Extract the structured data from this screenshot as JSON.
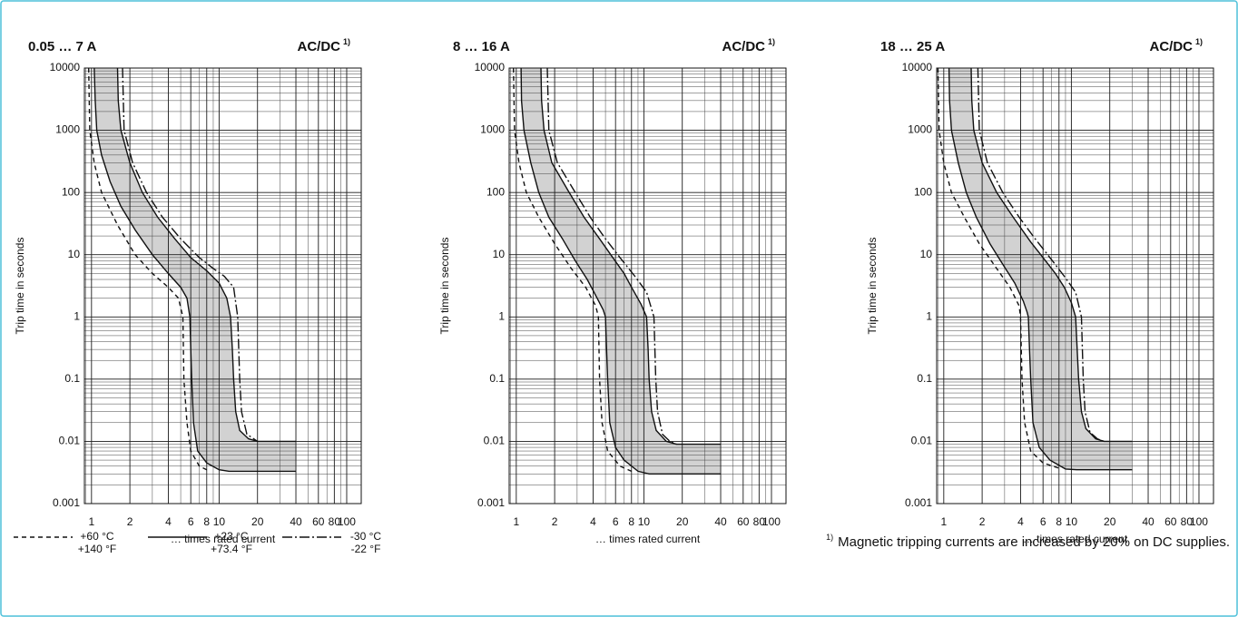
{
  "chart_data": [
    {
      "type": "line",
      "title": "0.05 … 7 A",
      "title_right": "AC/DC",
      "title_right_note": "1)",
      "ylabel": "Trip time in seconds",
      "xlabel": "… times rated current",
      "log_x": true,
      "log_y": true,
      "grid": true,
      "fill_between_solid": "#d2d2d2",
      "xlim": [
        0.88,
        130
      ],
      "ylim": [
        0.001,
        10000
      ],
      "xticks": [
        1,
        2,
        4,
        6,
        8,
        10,
        20,
        40,
        60,
        80,
        100
      ],
      "yticks": [
        10000,
        1000,
        100,
        10,
        1,
        0.1,
        0.01,
        0.001
      ],
      "series": [
        {
          "style": "solid",
          "color": "#111111",
          "x": [
            1.05,
            1.07,
            1.1,
            1.2,
            1.4,
            1.7,
            2.2,
            3,
            4,
            5,
            5.6,
            5.9,
            6.0,
            6.1,
            6.3,
            6.8,
            8,
            10,
            12,
            40
          ],
          "values": [
            10000,
            3000,
            1000,
            400,
            150,
            60,
            25,
            10,
            5,
            3,
            2,
            1,
            0.3,
            0.1,
            0.02,
            0.007,
            0.0045,
            0.0035,
            0.0033,
            0.0033
          ]
        },
        {
          "style": "solid",
          "color": "#111111",
          "x": [
            1.6,
            1.62,
            1.7,
            2,
            2.5,
            3.3,
            4.5,
            6,
            8,
            10,
            11.5,
            12.3,
            12.7,
            13,
            13.5,
            14.5,
            17,
            20,
            40
          ],
          "values": [
            10000,
            3000,
            1000,
            300,
            100,
            40,
            18,
            9,
            5.5,
            3.5,
            2,
            1,
            0.3,
            0.1,
            0.03,
            0.015,
            0.011,
            0.01,
            0.01
          ]
        },
        {
          "style": "dashed",
          "color": "#111111",
          "x": [
            0.95,
            0.97,
            1.05,
            1.2,
            1.6,
            2.2,
            3,
            4,
            4.8,
            5.2,
            5.3,
            5.6,
            6,
            7,
            8
          ],
          "values": [
            10000,
            1000,
            300,
            100,
            30,
            10,
            5,
            3,
            2,
            1,
            0.1,
            0.02,
            0.007,
            0.004,
            0.0035
          ]
        },
        {
          "style": "dashdot",
          "color": "#111111",
          "x": [
            1.75,
            1.8,
            2.1,
            2.7,
            3.6,
            5,
            7,
            9,
            11,
            13,
            14,
            14.5,
            15,
            16.5,
            20
          ],
          "values": [
            10000,
            1000,
            300,
            100,
            40,
            18,
            9,
            6,
            4.5,
            3,
            1,
            0.1,
            0.03,
            0.013,
            0.01
          ]
        }
      ]
    },
    {
      "type": "line",
      "title": "8 … 16 A",
      "title_right": "AC/DC",
      "title_right_note": "1)",
      "ylabel": "Trip time in seconds",
      "xlabel": "… times rated current",
      "log_x": true,
      "log_y": true,
      "grid": true,
      "fill_between_solid": "#d2d2d2",
      "xlim": [
        0.88,
        130
      ],
      "ylim": [
        0.001,
        10000
      ],
      "xticks": [
        1,
        2,
        4,
        6,
        8,
        10,
        20,
        40,
        60,
        80,
        100
      ],
      "yticks": [
        10000,
        1000,
        100,
        10,
        1,
        0.1,
        0.01,
        0.001
      ],
      "series": [
        {
          "style": "solid",
          "color": "#111111",
          "x": [
            1.09,
            1.1,
            1.15,
            1.3,
            1.5,
            1.8,
            2.3,
            2.9,
            3.6,
            4.3,
            4.8,
            5.0,
            5.1,
            5.2,
            5.4,
            6,
            7,
            9,
            11,
            40
          ],
          "values": [
            10000,
            3000,
            1000,
            300,
            100,
            40,
            18,
            8,
            4,
            2,
            1.3,
            1,
            0.3,
            0.1,
            0.02,
            0.008,
            0.005,
            0.0033,
            0.003,
            0.003
          ]
        },
        {
          "style": "solid",
          "color": "#111111",
          "x": [
            1.56,
            1.58,
            1.65,
            1.9,
            2.6,
            3.4,
            4.5,
            5.5,
            7,
            8,
            9.5,
            10.5,
            10.8,
            11,
            11.5,
            12.5,
            15,
            18,
            40
          ],
          "values": [
            10000,
            3000,
            1000,
            300,
            100,
            40,
            18,
            10,
            5,
            3,
            1.6,
            1,
            0.3,
            0.1,
            0.03,
            0.015,
            0.01,
            0.009,
            0.009
          ]
        },
        {
          "style": "dashed",
          "color": "#111111",
          "x": [
            0.95,
            0.97,
            1.05,
            1.2,
            1.5,
            2,
            2.7,
            3.5,
            4.2,
            4.4,
            4.5,
            4.7,
            5.2,
            6.5,
            8
          ],
          "values": [
            10000,
            1000,
            300,
            100,
            40,
            15,
            6,
            3,
            1.5,
            1,
            0.1,
            0.02,
            0.007,
            0.004,
            0.0033
          ]
        },
        {
          "style": "dashdot",
          "color": "#111111",
          "x": [
            1.75,
            1.8,
            2.1,
            2.9,
            3.8,
            5,
            6.5,
            8.5,
            10.5,
            12,
            12.4,
            12.8,
            14,
            16,
            18
          ],
          "values": [
            10000,
            1000,
            300,
            100,
            40,
            18,
            9,
            4.5,
            2.5,
            1,
            0.1,
            0.03,
            0.013,
            0.01,
            0.009
          ]
        }
      ]
    },
    {
      "type": "line",
      "title": "18 … 25 A",
      "title_right": "AC/DC",
      "title_right_note": "1)",
      "ylabel": "Trip time in seconds",
      "xlabel": "… times rated current",
      "log_x": true,
      "log_y": true,
      "grid": true,
      "fill_between_solid": "#d2d2d2",
      "xlim": [
        0.88,
        130
      ],
      "ylim": [
        0.001,
        10000
      ],
      "xticks": [
        1,
        2,
        4,
        6,
        8,
        10,
        20,
        40,
        60,
        80,
        100
      ],
      "yticks": [
        10000,
        1000,
        100,
        10,
        1,
        0.1,
        0.01,
        0.001
      ],
      "series": [
        {
          "style": "solid",
          "color": "#111111",
          "x": [
            1.1,
            1.11,
            1.15,
            1.3,
            1.5,
            1.8,
            2.3,
            2.9,
            3.6,
            4.2,
            4.5,
            4.6,
            4.7,
            4.8,
            5.0,
            5.6,
            6.8,
            9,
            11,
            30
          ],
          "values": [
            10000,
            3000,
            1000,
            300,
            100,
            40,
            15,
            7,
            3.5,
            1.8,
            1.2,
            1,
            0.3,
            0.1,
            0.02,
            0.008,
            0.005,
            0.0036,
            0.0035,
            0.0035
          ]
        },
        {
          "style": "solid",
          "color": "#111111",
          "x": [
            1.64,
            1.66,
            1.72,
            2,
            2.6,
            3.5,
            4.8,
            6,
            7.5,
            8.8,
            10,
            10.8,
            11.1,
            11.4,
            12,
            13,
            15.5,
            18,
            30
          ],
          "values": [
            10000,
            3000,
            1000,
            300,
            100,
            40,
            16,
            9,
            5,
            3,
            1.7,
            1,
            0.3,
            0.1,
            0.03,
            0.016,
            0.011,
            0.01,
            0.01
          ]
        },
        {
          "style": "dashed",
          "color": "#111111",
          "x": [
            0.9,
            0.92,
            1.0,
            1.15,
            1.45,
            1.9,
            2.6,
            3.3,
            3.9,
            4.0,
            4.1,
            4.3,
            4.8,
            6,
            8
          ],
          "values": [
            10000,
            1000,
            300,
            100,
            40,
            15,
            6,
            3,
            1.5,
            1,
            0.1,
            0.02,
            0.007,
            0.0045,
            0.0037
          ]
        },
        {
          "style": "dashdot",
          "color": "#111111",
          "x": [
            1.85,
            1.9,
            2.2,
            2.9,
            3.9,
            5.2,
            6.8,
            8.8,
            10.8,
            12,
            12.4,
            12.8,
            14,
            16,
            18
          ],
          "values": [
            10000,
            1000,
            300,
            100,
            40,
            18,
            9,
            4.5,
            2.5,
            1,
            0.1,
            0.03,
            0.014,
            0.011,
            0.01
          ]
        }
      ]
    }
  ],
  "legend": [
    {
      "style": "dashed",
      "lines": [
        "+60 °C",
        "+140 °F"
      ]
    },
    {
      "style": "solid",
      "lines": [
        "+23 °C",
        "+73.4 °F"
      ]
    },
    {
      "style": "dashdot",
      "lines": [
        "-30 °C",
        "-22 °F"
      ]
    }
  ],
  "footnote": {
    "mark": "1)",
    "text": "Magnetic tripping currents are increased by 20% on DC supplies."
  }
}
